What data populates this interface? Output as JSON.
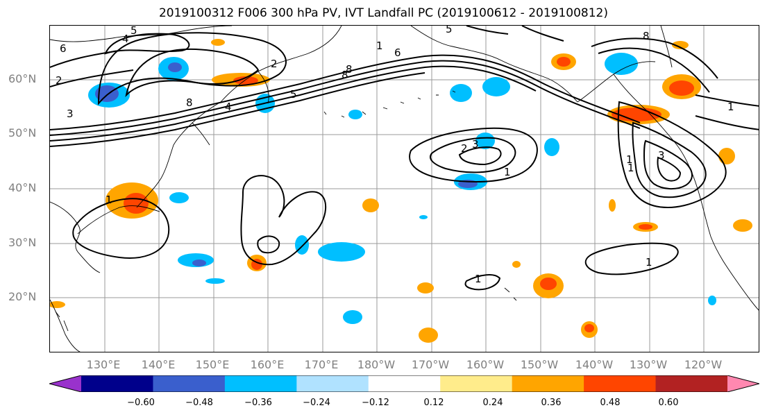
{
  "title": "2019100312 F006 300 hPa PV, IVT Landfall PC (2019100612 - 2019100812)",
  "map": {
    "lat_labels": [
      "60°N",
      "50°N",
      "40°N",
      "30°N",
      "20°N"
    ],
    "lon_labels": [
      "130°E",
      "140°E",
      "150°E",
      "160°E",
      "170°E",
      "180°W",
      "170°W",
      "160°W",
      "150°W",
      "140°W",
      "130°W",
      "120°W"
    ],
    "contour_labels": [
      "4",
      "5",
      "6",
      "2",
      "3",
      "8",
      "4",
      "5",
      "2",
      "1",
      "5",
      "8",
      "6",
      "8",
      "3",
      "2",
      "1",
      "1",
      "8",
      "3",
      "1",
      "1",
      "1",
      "1",
      "1"
    ]
  },
  "colorbar": {
    "colors": [
      "#9932cc",
      "#00008b",
      "#3a5fcd",
      "#00bfff",
      "#b0e2ff",
      "#ffffff",
      "#ffec8b",
      "#ffa500",
      "#ff4500",
      "#b22222",
      "#ff88b0"
    ],
    "ticks": [
      "−0.60",
      "−0.48",
      "−0.36",
      "−0.24",
      "−0.12",
      "0.12",
      "0.24",
      "0.36",
      "0.48",
      "0.60"
    ]
  }
}
